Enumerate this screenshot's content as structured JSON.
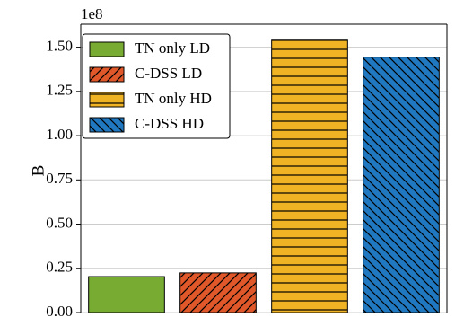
{
  "chart_data": {
    "type": "bar",
    "y_label": "B",
    "y_offset_label": "1e8",
    "categories": [
      null
    ],
    "series": [
      {
        "name": "TN only LD",
        "color": "#77ab32",
        "values": [
          0.203
        ]
      },
      {
        "name": "C-DSS LD",
        "color": "#e0582a",
        "hatch": "//",
        "values": [
          0.224
        ]
      },
      {
        "name": "TN only HD",
        "color": "#f0b323",
        "hatch": "-",
        "values": [
          1.545
        ]
      },
      {
        "name": "C-DSS HD",
        "color": "#1f78c0",
        "hatch": "\\\\",
        "values": [
          1.444
        ]
      }
    ],
    "ylim": [
      0,
      1.63
    ],
    "yticks": [
      {
        "value": 0,
        "label": "0.00"
      },
      0.25,
      {
        "value": 0.5,
        "label": "0.50"
      },
      0.75,
      {
        "value": 1,
        "label": "1.00"
      },
      1.25,
      {
        "value": 1.5,
        "label": "1.50"
      }
    ],
    "grid": true,
    "legend": "upper left"
  }
}
